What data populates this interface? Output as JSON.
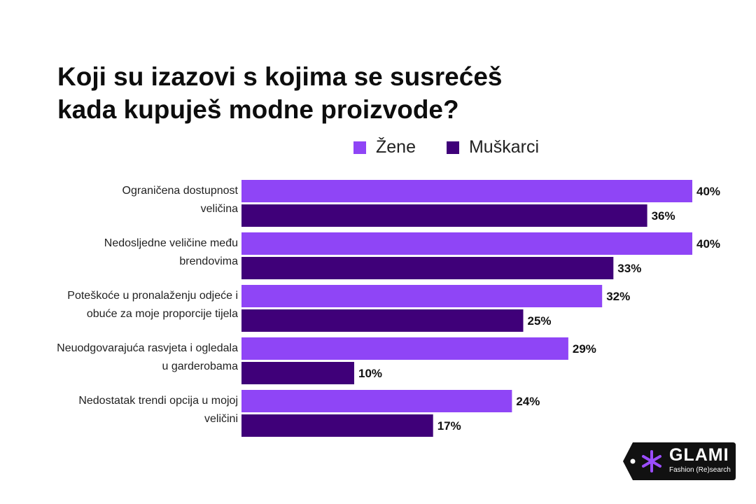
{
  "title_lines": [
    "Koji su izazovi s kojima se susrećeš",
    "kada kupuješ modne proizvode?"
  ],
  "colors": {
    "zene": "#8f45f6",
    "muskarci": "#3f0079",
    "text": "#111111",
    "logo_bg": "#111111"
  },
  "logo": {
    "icon": "asterisk-icon",
    "word": "GLAMI",
    "tagline": "Fashion (Re)search"
  },
  "chart_data": {
    "type": "bar",
    "orientation": "horizontal",
    "title": "Koji su izazovi s kojima se susrećeš kada kupuješ modne proizvode?",
    "categories": [
      [
        "Ograničena dostupnost",
        "veličina"
      ],
      [
        "Nedosljedne veličine među",
        "brendovima"
      ],
      [
        "Poteškoće u pronalaženju odjeće i",
        "obuće za moje proporcije tijela"
      ],
      [
        "Neuodgovarajuća rasvjeta i ogledala",
        "u garderobama"
      ],
      [
        "Nedostatak trendi opcija u mojoj",
        "veličini"
      ]
    ],
    "series": [
      {
        "name": "Žene",
        "values": [
          40,
          40,
          32,
          29,
          24
        ],
        "labels": [
          "40%",
          "40%",
          "32%",
          "29%",
          "24%"
        ]
      },
      {
        "name": "Muškarci",
        "values": [
          36,
          33,
          25,
          10,
          17
        ],
        "labels": [
          "36%",
          "33%",
          "25%",
          "10%",
          "17%"
        ]
      }
    ],
    "xlim": [
      0,
      40
    ],
    "legend": "top",
    "grid": false
  }
}
